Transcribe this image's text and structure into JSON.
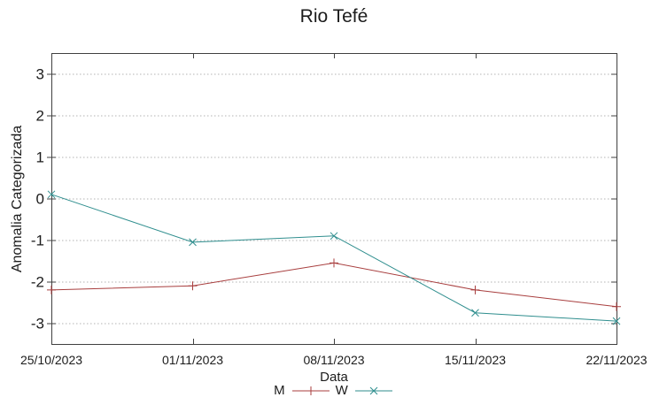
{
  "chart_data": {
    "type": "line",
    "title": "Rio Tefé",
    "xlabel": "Data",
    "ylabel": "Anomalia Categorizada",
    "categories": [
      "25/10/2023",
      "01/11/2023",
      "08/11/2023",
      "15/11/2023",
      "22/11/2023"
    ],
    "series": [
      {
        "name": "M",
        "color": "#a83e3e",
        "marker": "plus",
        "values": [
          -2.2,
          -2.1,
          -1.55,
          -2.2,
          -2.6
        ]
      },
      {
        "name": "W",
        "color": "#2f8e8e",
        "marker": "cross",
        "values": [
          0.1,
          -1.05,
          -0.9,
          -2.75,
          -2.95
        ]
      }
    ],
    "ylim": [
      -3.5,
      3.5
    ],
    "yticks": [
      -3,
      -2,
      -1,
      0,
      1,
      2,
      3
    ],
    "grid": "horizontal-dotted",
    "legend_position": "bottom-center"
  },
  "colors": {
    "background": "#ffffff",
    "axis_border": "#404040",
    "gridline": "#b3b3b3",
    "text": "#1c1c1c"
  }
}
